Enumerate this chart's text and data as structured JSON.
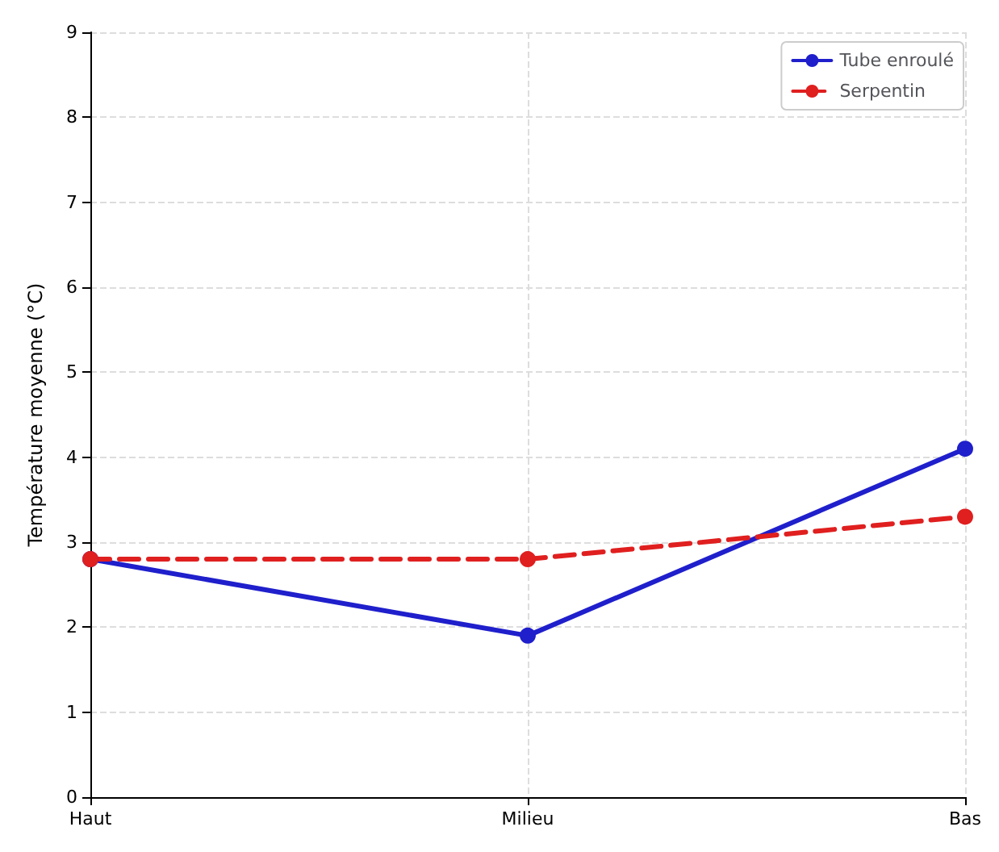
{
  "chart_data": {
    "type": "line",
    "ylabel": "Température moyenne (°C)",
    "categories": [
      "Haut",
      "Milieu",
      "Bas"
    ],
    "series": [
      {
        "name": "Tube enroulé",
        "color": "#1f1fcc",
        "values": [
          2.8,
          1.9,
          4.1
        ],
        "line_style": "solid"
      },
      {
        "name": "Serpentin",
        "color": "#e01f1f",
        "values": [
          2.8,
          2.8,
          3.3
        ],
        "line_style": "dashed"
      }
    ],
    "ylim": [
      0,
      9
    ],
    "yticks": [
      0,
      1,
      2,
      3,
      4,
      5,
      6,
      7,
      8,
      9
    ],
    "grid": true,
    "legend": "top right",
    "marker": "circle"
  }
}
